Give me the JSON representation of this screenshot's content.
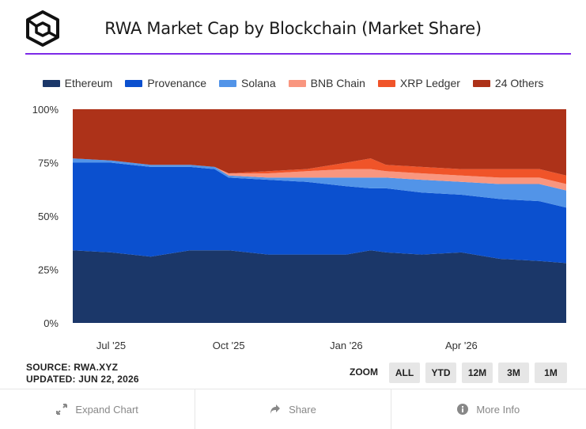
{
  "header": {
    "title": "RWA Market Cap by Blockchain (Market Share)",
    "logo_icon": "cube-logo-icon"
  },
  "chart_data": {
    "type": "area",
    "stacked": true,
    "normalized": true,
    "ylim": [
      0,
      100
    ],
    "yticks": [
      "0%",
      "25%",
      "50%",
      "75%",
      "100%"
    ],
    "x_start": "2025-06-01",
    "x_end": "2026-06-22",
    "xticks": [
      {
        "date": "2025-07-01",
        "label": "Jul '25"
      },
      {
        "date": "2025-10-01",
        "label": "Oct '25"
      },
      {
        "date": "2026-01-01",
        "label": "Jan '26"
      },
      {
        "date": "2026-04-01",
        "label": "Apr '26"
      }
    ],
    "x": [
      "2025-06-01",
      "2025-07-01",
      "2025-08-01",
      "2025-09-01",
      "2025-09-20",
      "2025-10-01",
      "2025-11-01",
      "2025-12-01",
      "2026-01-01",
      "2026-01-20",
      "2026-02-01",
      "2026-03-01",
      "2026-04-01",
      "2026-05-01",
      "2026-06-01",
      "2026-06-22"
    ],
    "series": [
      {
        "name": "Ethereum",
        "color": "#1b3769",
        "values": [
          34,
          33,
          31,
          34,
          34,
          34,
          32,
          32,
          32,
          34,
          33,
          32,
          33,
          30,
          29,
          28
        ]
      },
      {
        "name": "Provenance",
        "color": "#0b50cf",
        "values": [
          41,
          42,
          42,
          39,
          38,
          34,
          35,
          34,
          32,
          29,
          30,
          29,
          27,
          28,
          28,
          26
        ]
      },
      {
        "name": "Solana",
        "color": "#5294e8",
        "values": [
          2,
          1,
          1,
          1,
          1,
          1,
          1,
          2,
          4,
          5,
          5,
          6,
          6,
          7,
          8,
          8
        ]
      },
      {
        "name": "BNB Chain",
        "color": "#f9967f",
        "values": [
          0,
          0,
          0,
          0,
          0,
          1,
          2,
          3,
          4,
          4,
          3,
          3,
          3,
          3,
          3,
          3
        ]
      },
      {
        "name": "XRP Ledger",
        "color": "#f05429",
        "values": [
          0,
          0,
          0,
          0,
          0,
          0,
          1,
          1,
          3,
          5,
          3,
          3,
          3,
          4,
          4,
          4
        ]
      },
      {
        "name": "24 Others",
        "color": "#ad3219",
        "values": [
          23,
          24,
          26,
          26,
          27,
          30,
          29,
          28,
          25,
          23,
          26,
          27,
          28,
          28,
          28,
          31
        ]
      }
    ]
  },
  "meta": {
    "source": "SOURCE: RWA.XYZ",
    "updated": "UPDATED: JUN 22, 2026"
  },
  "zoom": {
    "label": "ZOOM",
    "buttons": [
      "ALL",
      "YTD",
      "12M",
      "3M",
      "1M"
    ]
  },
  "footer": {
    "expand": {
      "label": "Expand Chart",
      "icon": "expand-arrows-icon"
    },
    "share": {
      "label": "Share",
      "icon": "share-arrow-icon"
    },
    "more": {
      "label": "More Info",
      "icon": "info-circle-icon"
    }
  }
}
